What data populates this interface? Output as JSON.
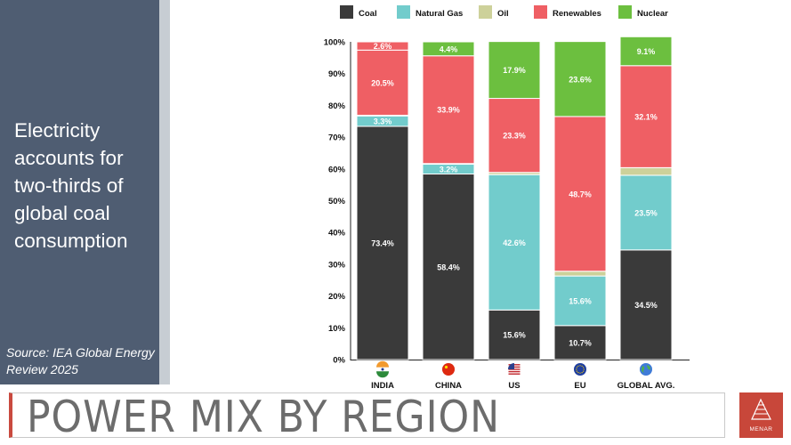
{
  "slide": {
    "headline": "Electricity accounts for two-thirds of global coal consumption",
    "source": "Source: IEA Global Energy Review 2025",
    "title": "POWER MIX BY REGION",
    "logo_text": "MENAR"
  },
  "colors": {
    "side_panel": "#4f5d72",
    "accent": "#c94a3f",
    "coal": "#3a3a3a",
    "natural_gas": "#72cccc",
    "oil": "#cdd19a",
    "renewables": "#ef5f64",
    "nuclear": "#6cbf3f"
  },
  "chart_data": {
    "type": "bar",
    "stacked": true,
    "categories": [
      "INDIA",
      "CHINA",
      "US",
      "EU",
      "GLOBAL AVG."
    ],
    "category_icons": [
      "india-flag-icon",
      "china-flag-icon",
      "us-flag-icon",
      "eu-flag-icon",
      "globe-icon"
    ],
    "ylim": [
      0,
      100
    ],
    "yticks": [
      "0%",
      "10%",
      "20%",
      "30%",
      "40%",
      "50%",
      "60%",
      "70%",
      "80%",
      "90%",
      "100%"
    ],
    "legend_position": "top",
    "series": [
      {
        "name": "Coal",
        "color": "#3a3a3a",
        "values": [
          73.4,
          58.4,
          15.6,
          10.7,
          34.5
        ],
        "labels": [
          "73.4%",
          "58.4%",
          "15.6%",
          "10.7%",
          "34.5%"
        ]
      },
      {
        "name": "Natural Gas",
        "color": "#72cccc",
        "values": [
          3.3,
          3.2,
          42.6,
          15.6,
          23.5
        ],
        "labels": [
          "3.3%",
          "3.2%",
          "42.6%",
          "15.6%",
          "23.5%"
        ]
      },
      {
        "name": "Oil",
        "color": "#cdd19a",
        "values": [
          0.2,
          0.1,
          0.7,
          1.5,
          2.4
        ],
        "labels": [
          "0.2%",
          "0.1%",
          "0.7%",
          "1.5%",
          "2.4%"
        ]
      },
      {
        "name": "Renewables",
        "color": "#ef5f64",
        "values": [
          20.5,
          33.9,
          23.3,
          48.7,
          32.1
        ],
        "labels": [
          "20.5%",
          "33.9%",
          "23.3%",
          "48.7%",
          "32.1%"
        ]
      },
      {
        "name": "Renewables",
        "color": "#ef5f64",
        "values": [
          2.6,
          0,
          0,
          0,
          0
        ],
        "labels": [
          "2.6%",
          "",
          "",
          "",
          ""
        ]
      },
      {
        "name": "Nuclear",
        "color": "#6cbf3f",
        "values": [
          0,
          4.4,
          17.9,
          23.6,
          9.1
        ],
        "labels": [
          "",
          "4.4%",
          "17.9%",
          "23.6%",
          "9.1%"
        ]
      }
    ]
  }
}
